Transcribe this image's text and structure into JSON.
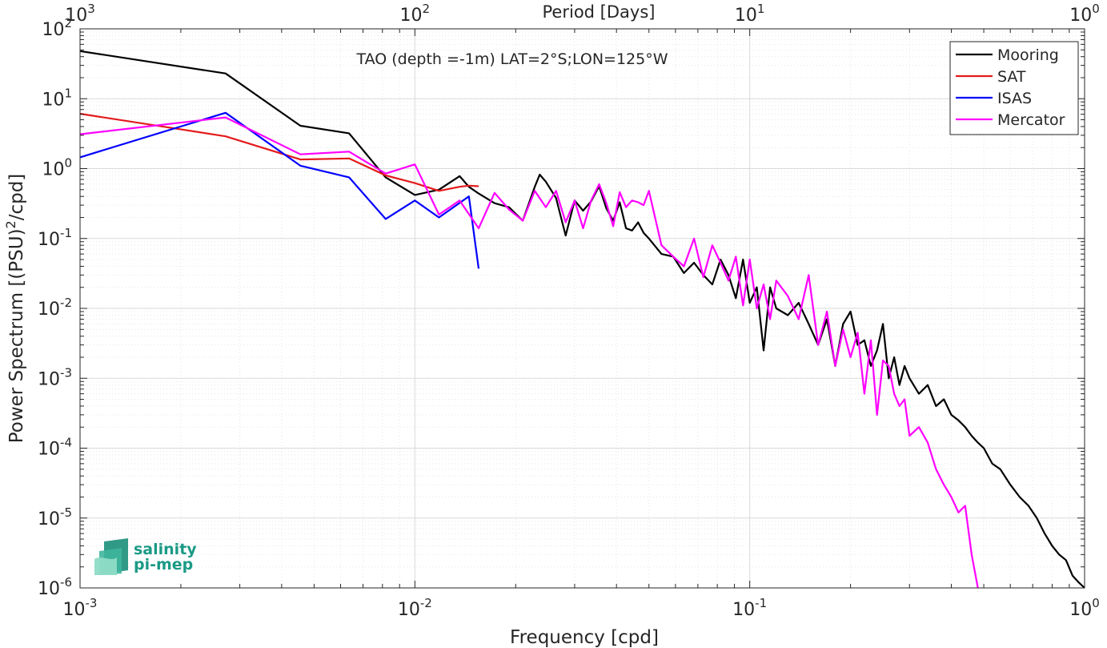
{
  "chart_data": {
    "type": "line",
    "title": "TAO (depth =-1m) LAT=2°S;LON=125°W",
    "xlabel": "Frequency [cpd]",
    "ylabel": "Power Spectrum [(PSU)²/cpd]",
    "x2label": "Period [Days]",
    "x_scale": "log",
    "y_scale": "log",
    "xlim": [
      0.001,
      1
    ],
    "ylim": [
      1e-06,
      100
    ],
    "grid": true,
    "legend_position": "top-right",
    "x_ticks": [
      {
        "base": "10",
        "exp": "-3"
      },
      {
        "base": "10",
        "exp": "-2"
      },
      {
        "base": "10",
        "exp": "-1"
      },
      {
        "base": "10",
        "exp": "0"
      }
    ],
    "x2_ticks": [
      {
        "base": "10",
        "exp": "3"
      },
      {
        "base": "10",
        "exp": "2"
      },
      {
        "base": "10",
        "exp": "1"
      },
      {
        "base": "10",
        "exp": "0"
      }
    ],
    "y_ticks": [
      {
        "base": "10",
        "exp": "2"
      },
      {
        "base": "10",
        "exp": "1"
      },
      {
        "base": "10",
        "exp": "0"
      },
      {
        "base": "10",
        "exp": "-1"
      },
      {
        "base": "10",
        "exp": "-2"
      },
      {
        "base": "10",
        "exp": "-3"
      },
      {
        "base": "10",
        "exp": "-4"
      },
      {
        "base": "10",
        "exp": "-5"
      },
      {
        "base": "10",
        "exp": "-6"
      }
    ],
    "series": [
      {
        "name": "Mooring",
        "color": "#000000",
        "x": [
          0.001,
          0.00272,
          0.00455,
          0.00636,
          0.00818,
          0.01,
          0.0118,
          0.0136,
          0.0145,
          0.0155,
          0.0173,
          0.0191,
          0.021,
          0.0228,
          0.0236,
          0.0246,
          0.0264,
          0.0282,
          0.03,
          0.0318,
          0.0336,
          0.0355,
          0.0373,
          0.0391,
          0.0409,
          0.0427,
          0.0445,
          0.0464,
          0.0482,
          0.05,
          0.0545,
          0.0591,
          0.0636,
          0.0682,
          0.0727,
          0.0773,
          0.0818,
          0.0864,
          0.0909,
          0.0955,
          0.1,
          0.105,
          0.11,
          0.115,
          0.12,
          0.13,
          0.14,
          0.15,
          0.16,
          0.17,
          0.18,
          0.19,
          0.2,
          0.21,
          0.22,
          0.23,
          0.24,
          0.25,
          0.26,
          0.27,
          0.28,
          0.29,
          0.3,
          0.32,
          0.34,
          0.36,
          0.38,
          0.4,
          0.42,
          0.44,
          0.46,
          0.48,
          0.5,
          0.53,
          0.56,
          0.6,
          0.64,
          0.68,
          0.72,
          0.76,
          0.8,
          0.84,
          0.88,
          0.92,
          0.96,
          1.0
        ],
        "y": [
          48,
          23,
          4.1,
          3.2,
          0.75,
          0.42,
          0.5,
          0.78,
          0.55,
          0.44,
          0.32,
          0.28,
          0.18,
          0.55,
          0.82,
          0.65,
          0.38,
          0.11,
          0.35,
          0.25,
          0.34,
          0.56,
          0.27,
          0.18,
          0.33,
          0.14,
          0.13,
          0.17,
          0.12,
          0.1,
          0.06,
          0.055,
          0.032,
          0.045,
          0.03,
          0.022,
          0.05,
          0.03,
          0.014,
          0.05,
          0.012,
          0.02,
          0.0025,
          0.02,
          0.01,
          0.008,
          0.012,
          0.006,
          0.003,
          0.007,
          0.0015,
          0.006,
          0.009,
          0.003,
          0.0035,
          0.0015,
          0.0025,
          0.006,
          0.001,
          0.002,
          0.0008,
          0.0015,
          0.001,
          0.0006,
          0.0008,
          0.0004,
          0.0005,
          0.0003,
          0.00025,
          0.0002,
          0.00015,
          0.00012,
          0.0001,
          6e-05,
          5e-05,
          3e-05,
          2e-05,
          1.5e-05,
          1e-05,
          6e-06,
          4e-06,
          3e-06,
          2.5e-06,
          1.5e-06,
          1.2e-06,
          1e-06
        ]
      },
      {
        "name": "SAT",
        "color": "#e41a1c",
        "x": [
          0.001,
          0.00272,
          0.00455,
          0.00636,
          0.00818,
          0.01,
          0.0118,
          0.0136,
          0.0145,
          0.0155
        ],
        "y": [
          6.1,
          2.9,
          1.35,
          1.4,
          0.8,
          0.62,
          0.48,
          0.55,
          0.57,
          0.56
        ]
      },
      {
        "name": "ISAS",
        "color": "#0000ff",
        "x": [
          0.001,
          0.00272,
          0.00455,
          0.00636,
          0.00818,
          0.01,
          0.0118,
          0.0145,
          0.0155
        ],
        "y": [
          1.45,
          6.3,
          1.1,
          0.75,
          0.19,
          0.35,
          0.2,
          0.4,
          0.037
        ]
      },
      {
        "name": "Mercator",
        "color": "#ff00ff",
        "x": [
          0.001,
          0.00272,
          0.00455,
          0.00636,
          0.00818,
          0.01,
          0.0118,
          0.0136,
          0.0155,
          0.0173,
          0.0191,
          0.021,
          0.0228,
          0.0246,
          0.0264,
          0.0282,
          0.03,
          0.0318,
          0.0336,
          0.0355,
          0.0373,
          0.0391,
          0.0409,
          0.0427,
          0.0445,
          0.0464,
          0.0482,
          0.05,
          0.0545,
          0.0591,
          0.0636,
          0.0682,
          0.0727,
          0.0773,
          0.0818,
          0.0864,
          0.0909,
          0.0955,
          0.1,
          0.105,
          0.11,
          0.115,
          0.12,
          0.13,
          0.14,
          0.15,
          0.16,
          0.17,
          0.18,
          0.19,
          0.2,
          0.21,
          0.22,
          0.23,
          0.24,
          0.25,
          0.26,
          0.27,
          0.28,
          0.29,
          0.3,
          0.32,
          0.34,
          0.36,
          0.38,
          0.4,
          0.42,
          0.44,
          0.46,
          0.48
        ],
        "y": [
          3.1,
          5.4,
          1.6,
          1.75,
          0.85,
          1.15,
          0.22,
          0.35,
          0.14,
          0.45,
          0.26,
          0.18,
          0.48,
          0.28,
          0.48,
          0.17,
          0.35,
          0.14,
          0.35,
          0.6,
          0.32,
          0.15,
          0.46,
          0.28,
          0.35,
          0.33,
          0.3,
          0.48,
          0.08,
          0.055,
          0.04,
          0.1,
          0.028,
          0.08,
          0.045,
          0.025,
          0.055,
          0.011,
          0.05,
          0.01,
          0.022,
          0.007,
          0.025,
          0.015,
          0.007,
          0.03,
          0.003,
          0.009,
          0.0015,
          0.005,
          0.002,
          0.0045,
          0.0006,
          0.0035,
          0.0003,
          0.0018,
          0.0015,
          0.0006,
          0.0004,
          0.0005,
          0.00015,
          0.0002,
          0.00012,
          5e-05,
          3e-05,
          2e-05,
          1.2e-05,
          1.5e-05,
          3e-06,
          1e-06
        ]
      }
    ]
  },
  "logo": {
    "line1": "salinity",
    "line2": "pi-mep"
  }
}
